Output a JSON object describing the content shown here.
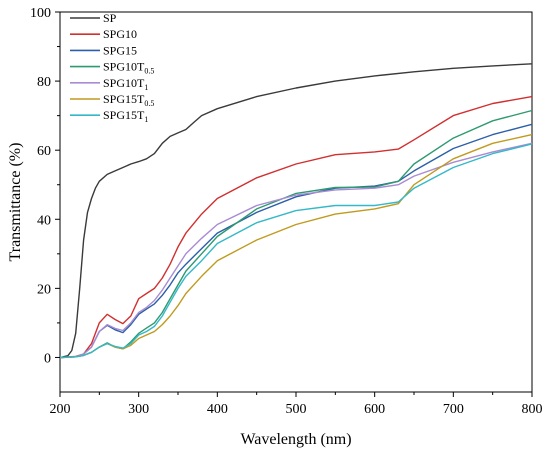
{
  "chart_data": {
    "type": "line",
    "xlabel": "Wavelength (nm)",
    "ylabel": "Transmittance (%)",
    "xlim": [
      200,
      800
    ],
    "ylim": [
      -10,
      100
    ],
    "xticks": [
      200,
      300,
      400,
      500,
      600,
      700,
      800
    ],
    "yticks": [
      0,
      20,
      40,
      60,
      80,
      100
    ],
    "grid": false,
    "legend_position": "top-left",
    "series": [
      {
        "name": "SP",
        "label_main": "SP",
        "label_sub": "",
        "color": "#3a3a3a",
        "x": [
          200,
          210,
          215,
          220,
          225,
          230,
          235,
          240,
          245,
          250,
          260,
          270,
          280,
          290,
          300,
          310,
          320,
          330,
          340,
          350,
          360,
          370,
          380,
          400,
          450,
          500,
          550,
          600,
          650,
          700,
          750,
          800
        ],
        "y": [
          0,
          0.5,
          2,
          7,
          20,
          34,
          42,
          46,
          49,
          51,
          53,
          54,
          55,
          56,
          56.7,
          57.5,
          59,
          62,
          64,
          65,
          66,
          68,
          70,
          72,
          75.5,
          78,
          80,
          81.5,
          82.7,
          83.7,
          84.4,
          85
        ]
      },
      {
        "name": "SPG10",
        "label_main": "SPG10",
        "label_sub": "",
        "color": "#d1302f",
        "x": [
          200,
          220,
          230,
          240,
          250,
          260,
          270,
          280,
          290,
          300,
          310,
          320,
          330,
          340,
          350,
          360,
          380,
          400,
          450,
          500,
          550,
          600,
          630,
          650,
          700,
          750,
          800
        ],
        "y": [
          0,
          0.3,
          1,
          4,
          10,
          12.5,
          11,
          9.8,
          12,
          17,
          18.5,
          20,
          23,
          27,
          32,
          36,
          41.5,
          46,
          52,
          56,
          58.7,
          59.5,
          60.3,
          63,
          70,
          73.5,
          75.5
        ]
      },
      {
        "name": "SPG15",
        "label_main": "SPG15",
        "label_sub": "",
        "color": "#2b5fa8",
        "x": [
          200,
          220,
          230,
          240,
          250,
          260,
          270,
          280,
          290,
          300,
          310,
          320,
          330,
          340,
          350,
          360,
          380,
          400,
          450,
          500,
          550,
          600,
          630,
          650,
          700,
          750,
          800
        ],
        "y": [
          0,
          0.2,
          1,
          3,
          7.5,
          9.3,
          8,
          7.2,
          9.5,
          12.5,
          14,
          15.5,
          18,
          21,
          24.5,
          27,
          31.5,
          36,
          42,
          46.5,
          49,
          49.6,
          51,
          54,
          60.5,
          64.5,
          67.5
        ]
      },
      {
        "name": "SPG10T0.5",
        "label_main": "SPG10T",
        "label_sub": "0.5",
        "color": "#2e9a70",
        "x": [
          200,
          220,
          230,
          240,
          250,
          260,
          270,
          280,
          290,
          300,
          310,
          320,
          330,
          340,
          350,
          360,
          380,
          400,
          450,
          500,
          550,
          600,
          630,
          650,
          700,
          750,
          800
        ],
        "y": [
          0,
          0.2,
          0.6,
          1.5,
          3,
          4.2,
          3,
          2.5,
          4.5,
          7,
          8.5,
          10,
          13,
          17,
          21,
          25,
          30,
          35,
          43,
          47.5,
          49.2,
          49.3,
          51,
          56,
          63.5,
          68.5,
          71.5
        ]
      },
      {
        "name": "SPG10T1",
        "label_main": "SPG10T",
        "label_sub": "1",
        "color": "#a98bd4",
        "x": [
          200,
          220,
          230,
          240,
          250,
          260,
          270,
          280,
          290,
          300,
          310,
          320,
          330,
          340,
          350,
          360,
          380,
          400,
          450,
          500,
          550,
          600,
          630,
          650,
          700,
          750,
          800
        ],
        "y": [
          0,
          0.2,
          1,
          3,
          7.5,
          9.5,
          8.4,
          7.8,
          10,
          13,
          14.5,
          16.5,
          19.5,
          23,
          26.5,
          30,
          34.5,
          38.5,
          44,
          47,
          48.5,
          49,
          50,
          52.5,
          56.5,
          59.5,
          62
        ]
      },
      {
        "name": "SPG15T0.5",
        "label_main": "SPG15T",
        "label_sub": "0.5",
        "color": "#c19a1e",
        "x": [
          200,
          220,
          230,
          240,
          250,
          260,
          270,
          280,
          290,
          300,
          310,
          320,
          330,
          340,
          350,
          360,
          380,
          400,
          450,
          500,
          550,
          600,
          630,
          650,
          700,
          750,
          800
        ],
        "y": [
          0,
          0.2,
          0.6,
          1.5,
          3,
          4,
          3,
          2.5,
          3.5,
          5.5,
          6.5,
          7.5,
          9.5,
          12,
          15,
          18.5,
          23.5,
          28,
          34,
          38.5,
          41.5,
          43,
          44.5,
          50,
          57.5,
          62,
          64.5
        ]
      },
      {
        "name": "SPG15T1",
        "label_main": "SPG15T",
        "label_sub": "1",
        "color": "#35b8c8",
        "x": [
          200,
          220,
          230,
          240,
          250,
          260,
          270,
          280,
          290,
          300,
          310,
          320,
          330,
          340,
          350,
          360,
          380,
          400,
          450,
          500,
          550,
          600,
          630,
          650,
          700,
          750,
          800
        ],
        "y": [
          0,
          0.2,
          0.6,
          1.5,
          3,
          4,
          3.2,
          2.7,
          4,
          6.5,
          7.5,
          9,
          12,
          16,
          20,
          23.5,
          28,
          33,
          39,
          42.5,
          44,
          44,
          45,
          49,
          55,
          59,
          61.8
        ]
      }
    ]
  }
}
